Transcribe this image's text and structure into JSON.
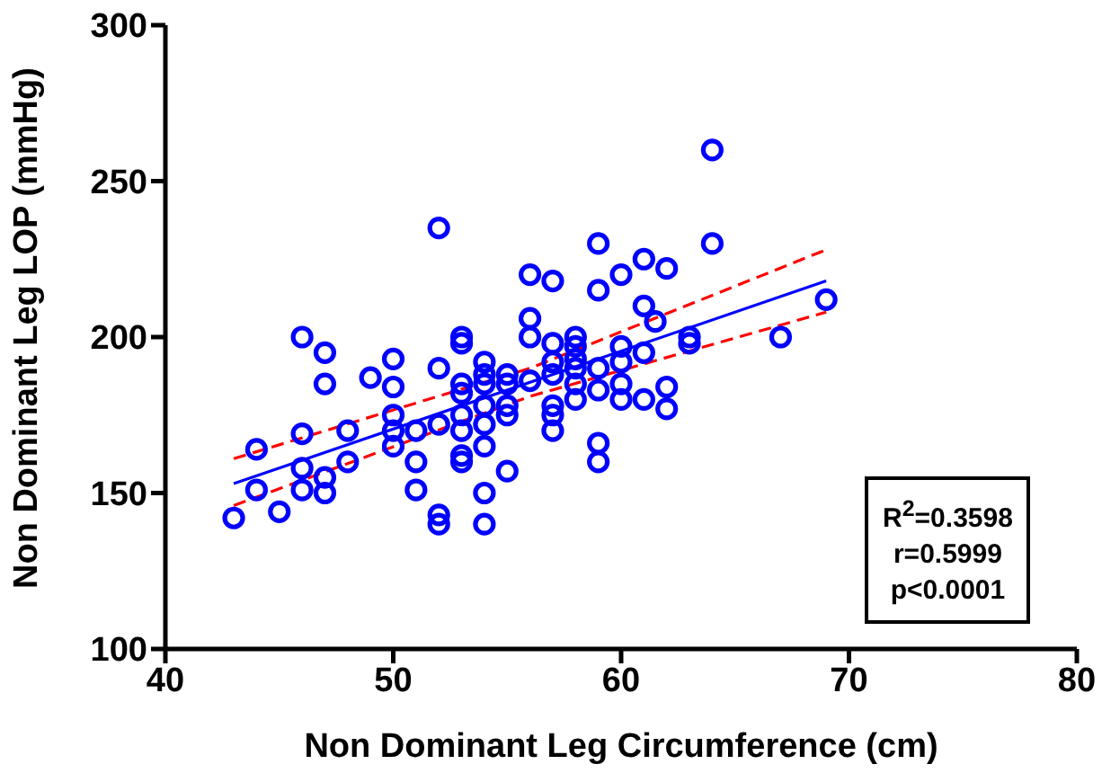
{
  "chart_data": {
    "type": "scatter",
    "xlabel": "Non Dominant Leg Circumference (cm)",
    "ylabel": "Non Dominant Leg LOP (mmHg)",
    "xlim": [
      40,
      80
    ],
    "xticks": [
      40,
      50,
      60,
      70,
      80
    ],
    "ylim": [
      100,
      300
    ],
    "yticks": [
      100,
      150,
      200,
      250,
      300
    ],
    "grid": false,
    "legend": false,
    "annotations": [
      "R$^{2}$=0.3598",
      "r=0.5999",
      "p<0.0001"
    ],
    "series": [
      {
        "type": "scatter",
        "color": "#0000ff",
        "marker": "circle",
        "x": [
          43,
          44,
          44,
          45,
          46,
          46,
          46,
          46,
          47,
          47,
          47,
          47,
          48,
          48,
          49,
          50,
          50,
          50,
          50,
          50,
          51,
          51,
          51,
          52,
          52,
          52,
          52,
          52,
          53,
          53,
          53,
          53,
          53,
          53,
          53,
          53,
          54,
          54,
          54,
          54,
          54,
          54,
          54,
          54,
          55,
          55,
          55,
          55,
          55,
          56,
          56,
          56,
          56,
          57,
          57,
          57,
          57,
          57,
          57,
          57,
          58,
          58,
          58,
          58,
          58,
          58,
          59,
          59,
          59,
          59,
          59,
          59,
          60,
          60,
          60,
          60,
          60,
          61,
          61,
          61,
          61,
          62,
          61.5,
          62,
          62,
          63,
          63,
          64,
          64,
          67,
          69
        ],
        "values": [
          142,
          151,
          164,
          144,
          200,
          169,
          158,
          151,
          195,
          185,
          155,
          150,
          170,
          160,
          187,
          193,
          184,
          175,
          170,
          165,
          170,
          160,
          151,
          235,
          190,
          172,
          143,
          140,
          200,
          198,
          185,
          182,
          175,
          170,
          162,
          160,
          192,
          188,
          185,
          178,
          172,
          165,
          150,
          140,
          188,
          185,
          178,
          175,
          157,
          220,
          206,
          200,
          186,
          218,
          198,
          192,
          188,
          178,
          175,
          170,
          200,
          197,
          193,
          190,
          185,
          180,
          230,
          215,
          190,
          183,
          166,
          160,
          220,
          197,
          192,
          185,
          180,
          225,
          210,
          195,
          180,
          222,
          205,
          184,
          177,
          200,
          198,
          260,
          230,
          200,
          212
        ]
      },
      {
        "type": "line",
        "color": "#0000ff",
        "marker": "none",
        "line_style": "solid",
        "x": [
          43,
          69
        ],
        "values": [
          153,
          218
        ]
      },
      {
        "type": "line",
        "color": "#ff0000",
        "marker": "none",
        "line_style": "dashed",
        "x": [
          43,
          56,
          69
        ],
        "values": [
          161,
          190,
          228
        ]
      },
      {
        "type": "line",
        "color": "#ff0000",
        "marker": "none",
        "line_style": "dashed",
        "x": [
          43,
          56,
          69
        ],
        "values": [
          146,
          181,
          208
        ]
      }
    ]
  }
}
